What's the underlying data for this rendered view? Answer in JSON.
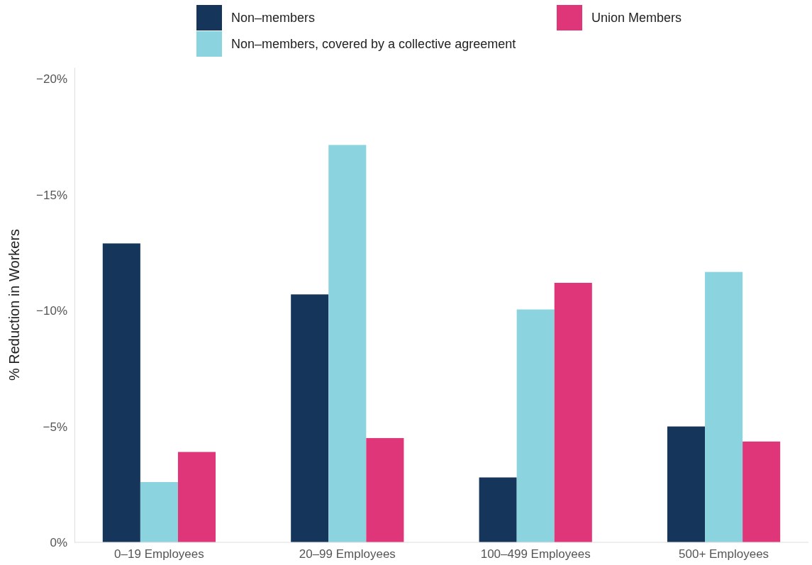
{
  "chart_data": {
    "type": "bar",
    "ylabel": "% Reduction in Workers",
    "categories": [
      "0–19 Employees",
      "20–99 Employees",
      "100–499 Employees",
      "500+ Employees"
    ],
    "series": [
      {
        "name": "Non–members",
        "color": "#15355a",
        "values": [
          -12.9,
          -10.7,
          -2.8,
          -5.0
        ]
      },
      {
        "name": "Non–members, covered by a collective agreement",
        "color": "#8bd3df",
        "values": [
          -2.6,
          -17.15,
          -10.05,
          -11.67
        ]
      },
      {
        "name": "Union Members",
        "color": "#df367a",
        "values": [
          -3.9,
          -4.5,
          -11.2,
          -4.35
        ]
      }
    ],
    "ylim": [
      0,
      -20.5
    ],
    "yticks": [
      {
        "value": 0,
        "label": "0%"
      },
      {
        "value": -5,
        "label": "−5%"
      },
      {
        "value": -10,
        "label": "−10%"
      },
      {
        "value": -15,
        "label": "−15%"
      },
      {
        "value": -20,
        "label": "−20%"
      }
    ],
    "grid": false,
    "legend": "top"
  }
}
